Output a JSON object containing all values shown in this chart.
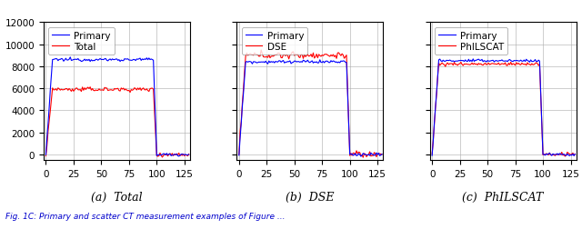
{
  "figsize": [
    6.4,
    2.53
  ],
  "dpi": 100,
  "subplots": [
    {
      "title": "(a)  Total",
      "legend": [
        "Primary",
        "Total"
      ],
      "legend_colors": [
        "#0000ff",
        "#ff0000"
      ],
      "xlim": [
        -2,
        130
      ],
      "ylim": [
        -500,
        12000
      ],
      "yticks": [
        0,
        2000,
        4000,
        6000,
        8000,
        10000,
        12000
      ],
      "xticks": [
        0,
        25,
        50,
        75,
        100,
        125
      ],
      "primary_flat": 8600,
      "secondary_flat": 5900,
      "primary_start": 0,
      "secondary_start": 0,
      "ramp_end": 97,
      "noise_primary": 70,
      "noise_secondary": 100
    },
    {
      "title": "(b)  DSE",
      "legend": [
        "Primary",
        "DSE"
      ],
      "legend_colors": [
        "#0000ff",
        "#ff0000"
      ],
      "xlim": [
        -2,
        130
      ],
      "ylim": [
        -500,
        12000
      ],
      "yticks": [
        0,
        2000,
        4000,
        6000,
        8000,
        10000,
        12000
      ],
      "xticks": [
        0,
        25,
        50,
        75,
        100,
        125
      ],
      "primary_flat": 8400,
      "secondary_flat": 9000,
      "primary_start": 0,
      "secondary_start": 0,
      "ramp_end": 97,
      "noise_primary": 70,
      "noise_secondary": 150
    },
    {
      "title": "(c)  PhILSCAT",
      "legend": [
        "Primary",
        "PhILSCAT"
      ],
      "legend_colors": [
        "#0000ff",
        "#ff0000"
      ],
      "xlim": [
        -2,
        130
      ],
      "ylim": [
        -500,
        12000
      ],
      "yticks": [
        0,
        2000,
        4000,
        6000,
        8000,
        10000,
        12000
      ],
      "xticks": [
        0,
        25,
        50,
        75,
        100,
        125
      ],
      "primary_flat": 8500,
      "secondary_flat": 8200,
      "primary_start": 0,
      "secondary_start": 0,
      "ramp_end": 97,
      "noise_primary": 70,
      "noise_secondary": 80
    }
  ],
  "caption": "Fig. 1C: Primary and scatter CT measurement examples of Figure ...",
  "caption_color": "#0000cc",
  "background_color": "white"
}
